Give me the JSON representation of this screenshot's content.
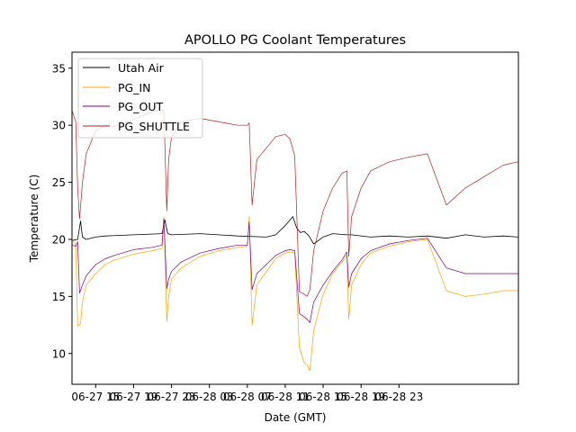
{
  "chart_data": {
    "type": "line",
    "title": "APOLLO PG Coolant Temperatures",
    "xlabel": "Date (GMT)",
    "ylabel": "Temperature (C)",
    "xlim": [
      12.5,
      59.6
    ],
    "ylim": [
      7.3,
      36.4
    ],
    "x_unit": "hours since 06-27 00:00 GMT",
    "x_ticks": [
      {
        "value": 15,
        "label": "06-27 15"
      },
      {
        "value": 19,
        "label": "06-27 19"
      },
      {
        "value": 23,
        "label": "06-27 23"
      },
      {
        "value": 27,
        "label": "06-28 03"
      },
      {
        "value": 31,
        "label": "06-28 07"
      },
      {
        "value": 35,
        "label": "06-28 11"
      },
      {
        "value": 39,
        "label": "06-28 15"
      },
      {
        "value": 43,
        "label": "06-28 19"
      },
      {
        "value": 47,
        "label": "06-28 23"
      }
    ],
    "y_ticks": [
      10,
      15,
      20,
      25,
      30,
      35
    ],
    "grid": false,
    "legend_position": "top-left",
    "series": [
      {
        "name": "Utah Air",
        "color": "#000000",
        "x": [
          12.5,
          13.1,
          13.4,
          13.6,
          14.0,
          15.0,
          16.0,
          19.0,
          22.0,
          22.3,
          22.6,
          23.0,
          26.0,
          30.0,
          33.0,
          34.0,
          35.0,
          35.6,
          35.8,
          36.2,
          36.6,
          37.0,
          37.5,
          38.0,
          39.0,
          40.0,
          41.5,
          42.0,
          44.0,
          46.0,
          48.0,
          50.0,
          52.0,
          54.0,
          56.0,
          58.0,
          59.6
        ],
        "values": [
          19.9,
          20.0,
          21.6,
          20.2,
          20.0,
          20.2,
          20.3,
          20.4,
          20.5,
          21.7,
          20.5,
          20.4,
          20.5,
          20.3,
          20.2,
          20.4,
          21.2,
          21.8,
          22.0,
          21.0,
          20.6,
          20.7,
          20.3,
          19.6,
          20.2,
          20.5,
          20.4,
          20.4,
          20.2,
          20.3,
          20.2,
          20.3,
          20.1,
          20.4,
          20.2,
          20.3,
          20.2
        ]
      },
      {
        "name": "PG_IN",
        "color": "#ffa500",
        "x": [
          12.5,
          12.9,
          13.1,
          13.4,
          13.6,
          14.0,
          15.0,
          16.0,
          17.0,
          19.0,
          21.0,
          22.0,
          22.2,
          22.5,
          22.7,
          23.0,
          24.0,
          26.0,
          28.0,
          30.0,
          31.0,
          31.2,
          31.5,
          32.0,
          34.0,
          35.0,
          35.5,
          36.0,
          36.5,
          37.0,
          37.3,
          37.6,
          38.0,
          39.0,
          40.0,
          41.0,
          41.5,
          41.7,
          42.0,
          43.0,
          44.0,
          46.0,
          48.0,
          50.0,
          52.0,
          54.0,
          56.0,
          58.0,
          59.6
        ],
        "values": [
          20.0,
          19.5,
          12.4,
          12.6,
          14.5,
          16.0,
          17.0,
          17.8,
          18.2,
          18.7,
          19.0,
          19.2,
          22.0,
          12.8,
          15.0,
          16.5,
          17.5,
          18.5,
          19.0,
          19.3,
          19.4,
          22.0,
          12.5,
          16.0,
          18.3,
          18.8,
          18.9,
          18.8,
          10.5,
          9.2,
          9.0,
          8.5,
          12.0,
          15.2,
          17.0,
          18.0,
          18.6,
          13.0,
          16.0,
          17.8,
          18.8,
          19.4,
          19.8,
          20.0,
          15.5,
          15.0,
          15.2,
          15.5,
          15.5
        ]
      },
      {
        "name": "PG_OUT",
        "color": "#800080",
        "x": [
          12.5,
          12.9,
          13.1,
          13.3,
          13.6,
          14.0,
          15.0,
          16.0,
          17.0,
          19.0,
          21.0,
          22.0,
          22.2,
          22.5,
          22.7,
          23.0,
          24.0,
          26.0,
          28.0,
          30.0,
          31.0,
          31.2,
          31.5,
          32.0,
          34.0,
          35.0,
          35.5,
          36.0,
          36.5,
          37.0,
          37.3,
          37.6,
          38.0,
          39.0,
          40.0,
          41.0,
          41.5,
          41.7,
          42.0,
          43.0,
          44.0,
          46.0,
          48.0,
          50.0,
          52.0,
          54.0,
          56.0,
          58.0,
          59.6
        ],
        "values": [
          19.5,
          19.4,
          19.8,
          15.3,
          16.0,
          16.8,
          17.8,
          18.3,
          18.6,
          19.1,
          19.3,
          19.5,
          21.8,
          15.7,
          16.5,
          17.2,
          18.0,
          18.8,
          19.2,
          19.5,
          19.5,
          21.5,
          15.6,
          17.0,
          18.6,
          19.0,
          19.1,
          19.0,
          13.5,
          13.2,
          13.0,
          12.7,
          14.5,
          16.0,
          17.2,
          18.2,
          18.9,
          15.8,
          17.0,
          18.3,
          19.0,
          19.6,
          19.9,
          20.1,
          17.5,
          17.0,
          17.0,
          17.0,
          17.0
        ]
      },
      {
        "name": "PG_SHUTTLE",
        "color": "#b22222",
        "x": [
          12.5,
          12.9,
          13.1,
          13.3,
          13.6,
          14.0,
          15.0,
          16.0,
          17.0,
          19.0,
          21.0,
          22.0,
          22.2,
          22.5,
          22.7,
          23.0,
          24.0,
          26.0,
          28.0,
          30.0,
          31.0,
          31.2,
          31.5,
          32.0,
          34.0,
          35.0,
          35.5,
          36.0,
          36.5,
          37.0,
          37.3,
          37.6,
          38.0,
          39.0,
          40.0,
          41.0,
          41.5,
          41.7,
          42.0,
          43.0,
          44.0,
          46.0,
          48.0,
          50.0,
          52.0,
          54.0,
          56.0,
          58.0,
          59.6
        ],
        "values": [
          31.3,
          30.3,
          24.5,
          21.8,
          25.0,
          27.5,
          29.5,
          30.0,
          29.9,
          30.5,
          31.2,
          31.3,
          31.3,
          22.5,
          27.0,
          29.0,
          30.3,
          30.6,
          30.3,
          30.0,
          30.0,
          30.2,
          23.0,
          27.0,
          29.0,
          29.2,
          28.8,
          27.3,
          15.4,
          15.2,
          15.0,
          15.6,
          19.0,
          22.5,
          24.5,
          25.8,
          26.0,
          18.5,
          22.0,
          24.5,
          26.0,
          26.8,
          27.2,
          27.5,
          23.0,
          24.5,
          25.5,
          26.5,
          26.8
        ]
      }
    ]
  }
}
